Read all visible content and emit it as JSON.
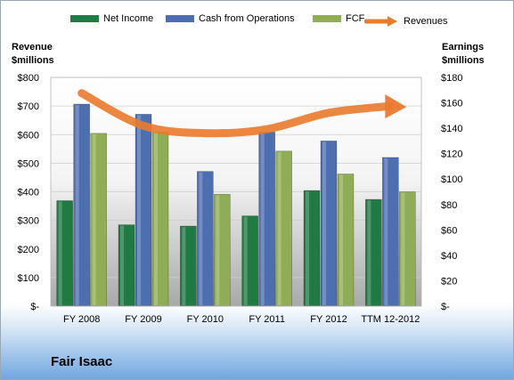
{
  "company": "Fair Isaac",
  "colors": {
    "net_income": "#217a44",
    "cash_from_operations": "#4d6fb0",
    "fcf": "#8fad55",
    "revenues": "#ea7a2e"
  },
  "chart_data": {
    "type": "bar",
    "categories": [
      "FY 2008",
      "FY 2009",
      "FY 2010",
      "FY 2011",
      "FY 2012",
      "TTM 12-2012"
    ],
    "series": [
      {
        "name": "Net Income",
        "axis": "right",
        "values": [
          83,
          64,
          63,
          71,
          91,
          84
        ]
      },
      {
        "name": "Cash from Operations",
        "axis": "right",
        "values": [
          159,
          151,
          106,
          137,
          130,
          117
        ]
      },
      {
        "name": "FCF",
        "axis": "right",
        "values": [
          136,
          137,
          88,
          122,
          104,
          90
        ]
      },
      {
        "name": "Revenues",
        "axis": "left",
        "type": "line",
        "values": [
          745,
          631,
          605,
          619,
          676,
          700
        ]
      }
    ],
    "left_axis": {
      "title_line1": "Revenue",
      "title_line2": "$millions",
      "ylim": [
        0,
        800
      ],
      "ticks": [
        "$-",
        "$100",
        "$200",
        "$300",
        "$400",
        "$500",
        "$600",
        "$700",
        "$800"
      ]
    },
    "right_axis": {
      "title_line1": "Earnings",
      "title_line2": "$millions",
      "ylim": [
        0,
        180
      ],
      "ticks": [
        "$-",
        "$20",
        "$40",
        "$60",
        "$80",
        "$100",
        "$120",
        "$140",
        "$160",
        "$180"
      ]
    },
    "legend": "top",
    "legend_labels": [
      "Net Income",
      "Cash from Operations",
      "FCF",
      "Revenues"
    ]
  }
}
